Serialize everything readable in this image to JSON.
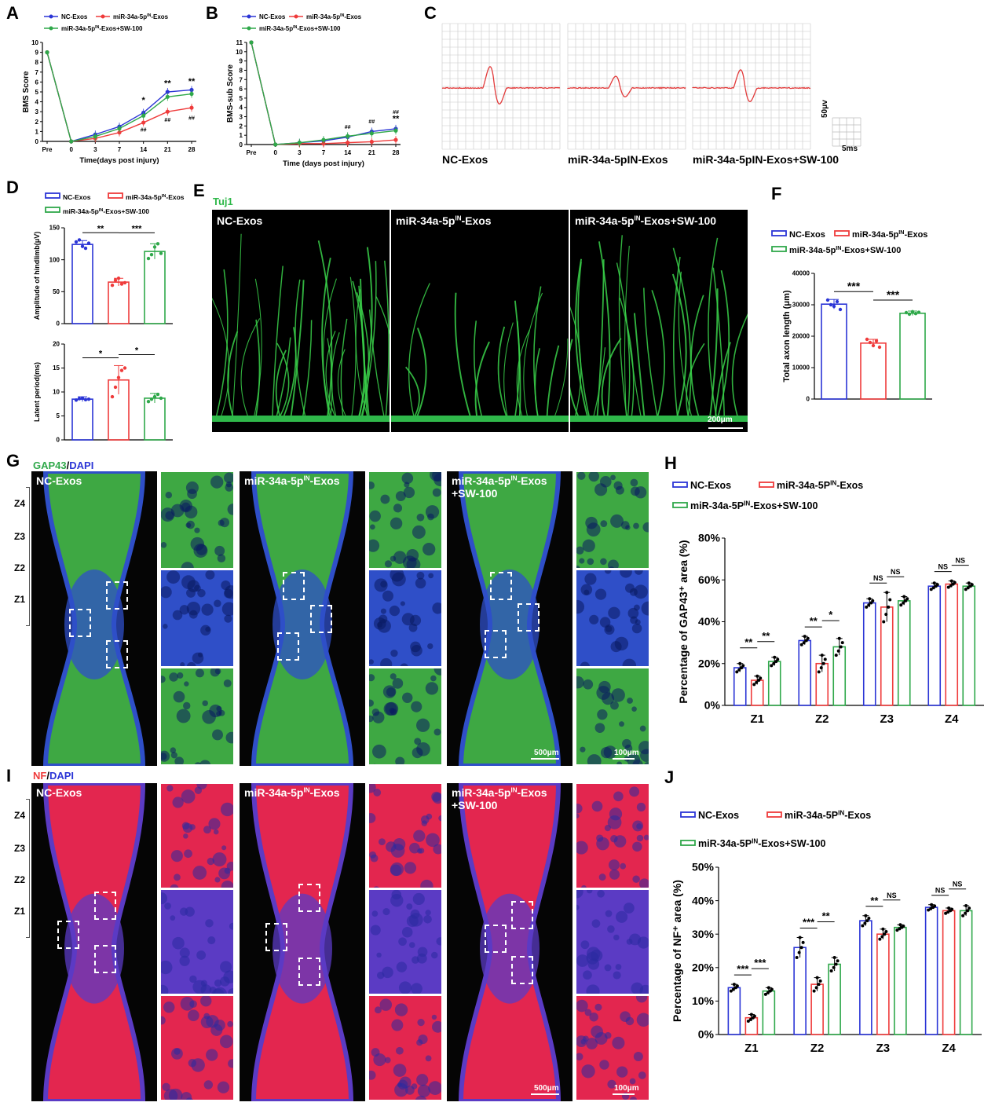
{
  "panels": {
    "A": "A",
    "B": "B",
    "C": "C",
    "D": "D",
    "E": "E",
    "F": "F",
    "G": "G",
    "H": "H",
    "I": "I",
    "J": "J"
  },
  "colors": {
    "nc": "#2b35d6",
    "mir": "#ef3b3b",
    "sw": "#2fa84a",
    "emg": "#e23a3a"
  },
  "groups_exos": {
    "nc": "NC-Exos",
    "mir": "miR-34a-5pIN-Exos",
    "sw": "miR-34a-5pIN-Exos+SW-100"
  },
  "groups_cap": {
    "nc": "NC-Exos",
    "mir": "miR-34a-5PIN-Exos",
    "sw": "miR-34a-5PIN-Exos+SW-100"
  },
  "panel_c": {
    "captions": [
      "NC-Exos",
      "miR-34a-5pIN-Exos",
      "miR-34a-5pIN-Exos+SW-100"
    ],
    "scale_v": "50μv",
    "scale_t": "5ms"
  },
  "panel_e": {
    "stain": "Tuj1",
    "labels": [
      "NC-Exos",
      "miR-34a-5pIN-Exos",
      "miR-34a-5pIN-Exos+SW-100"
    ],
    "scale": "200μm"
  },
  "panel_g": {
    "stain_a": "GAP43",
    "stain_sep": "/",
    "stain_b": "DAPI",
    "labels": [
      "NC-Exos",
      "miR-34a-5pIN-Exos",
      "miR-34a-5pIN-Exos",
      "+SW-100"
    ],
    "zones": [
      "Z4",
      "Z3",
      "Z2",
      "Z1"
    ],
    "scale_main": "500μm",
    "scale_zoom": "100μm"
  },
  "panel_i": {
    "stain_a": "NF",
    "stain_sep": "/",
    "stain_b": "DAPI",
    "labels": [
      "NC-Exos",
      "miR-34a-5pIN-Exos",
      "miR-34a-5pIN-Exos",
      "+SW-100"
    ],
    "zones": [
      "Z4",
      "Z3",
      "Z2",
      "Z1"
    ],
    "scale_main": "500μm",
    "scale_zoom": "100μm"
  },
  "chart_data": [
    {
      "id": "A",
      "type": "line",
      "xlabel": "Time(days post injury)",
      "ylabel": "BMS Score",
      "x": [
        "Pre",
        "0",
        "3",
        "7",
        "14",
        "21",
        "28"
      ],
      "ylim": [
        0,
        10
      ],
      "yticks": [
        0,
        1,
        2,
        3,
        4,
        5,
        6,
        7,
        8,
        9,
        10
      ],
      "series": [
        {
          "name": "NC-Exos",
          "values": [
            9,
            0,
            0.7,
            1.5,
            2.9,
            5.0,
            5.2
          ]
        },
        {
          "name": "miR-34a-5pIN-Exos",
          "values": [
            9,
            0,
            0.3,
            0.9,
            1.9,
            3.0,
            3.4
          ]
        },
        {
          "name": "miR-34a-5pIN-Exos+SW-100",
          "values": [
            9,
            0,
            0.5,
            1.3,
            2.6,
            4.5,
            4.8
          ]
        }
      ],
      "annotations": [
        {
          "x": "14",
          "y": 3.9,
          "text": "*"
        },
        {
          "x": "21",
          "y": 5.6,
          "text": "**"
        },
        {
          "x": "28",
          "y": 5.8,
          "text": "**"
        },
        {
          "x": "14",
          "y": 1.0,
          "text": "##"
        },
        {
          "x": "21",
          "y": 2.0,
          "text": "##"
        },
        {
          "x": "28",
          "y": 2.2,
          "text": "##"
        }
      ]
    },
    {
      "id": "B",
      "type": "line",
      "xlabel": "Time (days post injury)",
      "ylabel": "BMS-sub Score",
      "x": [
        "Pre",
        "0",
        "3",
        "7",
        "14",
        "21",
        "28"
      ],
      "ylim": [
        0,
        11
      ],
      "yticks": [
        0,
        1,
        2,
        3,
        4,
        5,
        6,
        7,
        8,
        9,
        10,
        11
      ],
      "series": [
        {
          "name": "NC-Exos",
          "values": [
            11,
            0,
            0.2,
            0.4,
            0.8,
            1.4,
            1.7
          ]
        },
        {
          "name": "miR-34a-5pIN-Exos",
          "values": [
            11,
            0,
            0.1,
            0.1,
            0.2,
            0.3,
            0.5
          ]
        },
        {
          "name": "miR-34a-5pIN-Exos+SW-100",
          "values": [
            11,
            0,
            0.2,
            0.5,
            0.9,
            1.2,
            1.5
          ]
        }
      ],
      "annotations": [
        {
          "x": "14",
          "y": 1.7,
          "text": "##"
        },
        {
          "x": "21",
          "y": 2.3,
          "text": "##"
        },
        {
          "x": "28",
          "y": 3.3,
          "text": "##"
        },
        {
          "x": "28",
          "y": 2.5,
          "text": "**"
        }
      ]
    },
    {
      "id": "D1",
      "type": "bar",
      "ylabel": "Amplitude of hindlimb(μV)",
      "categories": [
        "NC-Exos",
        "miR-34a-5pIN-Exos",
        "miR-34a-5pIN-Exos+SW-100"
      ],
      "values": [
        124,
        65,
        113
      ],
      "errors": [
        6,
        6,
        12
      ],
      "ylim": [
        0,
        150
      ],
      "yticks": [
        0,
        50,
        100,
        150
      ],
      "points": [
        [
          128,
          131,
          121,
          118,
          126
        ],
        [
          60,
          68,
          71,
          62,
          64
        ],
        [
          102,
          108,
          120,
          125,
          110
        ]
      ],
      "sig": [
        {
          "from": 0,
          "to": 1,
          "text": "**"
        },
        {
          "from": 1,
          "to": 2,
          "text": "***"
        }
      ]
    },
    {
      "id": "D2",
      "type": "bar",
      "ylabel": "Latent period(ms)",
      "categories": [
        "NC-Exos",
        "miR-34a-5pIN-Exos",
        "miR-34a-5pIN-Exos+SW-100"
      ],
      "values": [
        8.5,
        12.5,
        8.7
      ],
      "errors": [
        0.5,
        3,
        1
      ],
      "ylim": [
        0,
        20
      ],
      "yticks": [
        0,
        5,
        10,
        15,
        20
      ],
      "points": [
        [
          8.3,
          8.6,
          8.7,
          8.4,
          8.5
        ],
        [
          9,
          11,
          13,
          14.5,
          15
        ],
        [
          8,
          8.5,
          9,
          9.5,
          8.7
        ]
      ],
      "sig": [
        {
          "from": 0,
          "to": 1,
          "text": "*"
        },
        {
          "from": 1,
          "to": 2,
          "text": "*"
        }
      ]
    },
    {
      "id": "F",
      "type": "bar",
      "ylabel": "Total axon length (μm)",
      "categories": [
        "NC-Exos",
        "miR-34a-5pIN-Exos",
        "miR-34a-5pIN-Exos+SW-100"
      ],
      "values": [
        30200,
        17800,
        27300
      ],
      "errors": [
        1500,
        1200,
        700
      ],
      "ylim": [
        0,
        40000
      ],
      "yticks": [
        0,
        10000,
        20000,
        30000,
        40000
      ],
      "points": [
        [
          31500,
          30000,
          29500,
          31000,
          28500
        ],
        [
          19000,
          18000,
          17000,
          18500,
          16500
        ],
        [
          27500,
          27000,
          27800,
          27200,
          27600
        ]
      ],
      "sig": [
        {
          "from": 0,
          "to": 1,
          "text": "***"
        },
        {
          "from": 1,
          "to": 2,
          "text": "***"
        }
      ]
    },
    {
      "id": "H",
      "type": "bar",
      "ylabel": "Percentage of GAP43⁺ area (%)",
      "categories": [
        "Z1",
        "Z2",
        "Z3",
        "Z4"
      ],
      "ylim": [
        0,
        80
      ],
      "yticks": [
        0,
        20,
        40,
        60,
        80
      ],
      "ytick_suffix": "%",
      "series": [
        {
          "name": "NC-Exos",
          "values": [
            18,
            31,
            49,
            57
          ],
          "errors": [
            2,
            2,
            2,
            1.5
          ]
        },
        {
          "name": "miR-34a-5PIN-Exos",
          "values": [
            12,
            20,
            47,
            58
          ],
          "errors": [
            2,
            4,
            7,
            1.5
          ]
        },
        {
          "name": "miR-34a-5PIN-Exos+SW-100",
          "values": [
            21,
            28,
            50,
            57
          ],
          "errors": [
            2,
            4,
            2,
            1.5
          ]
        }
      ],
      "sig": [
        {
          "group": 0,
          "from": 0,
          "to": 1,
          "text": "**"
        },
        {
          "group": 0,
          "from": 1,
          "to": 2,
          "text": "**"
        },
        {
          "group": 1,
          "from": 0,
          "to": 1,
          "text": "**"
        },
        {
          "group": 1,
          "from": 1,
          "to": 2,
          "text": "*"
        },
        {
          "group": 2,
          "from": 0,
          "to": 1,
          "text": "NS"
        },
        {
          "group": 2,
          "from": 1,
          "to": 2,
          "text": "NS"
        },
        {
          "group": 3,
          "from": 0,
          "to": 1,
          "text": "NS"
        },
        {
          "group": 3,
          "from": 1,
          "to": 2,
          "text": "NS"
        }
      ]
    },
    {
      "id": "J",
      "type": "bar",
      "ylabel": "Percentage of NF⁺ area (%)",
      "categories": [
        "Z1",
        "Z2",
        "Z3",
        "Z4"
      ],
      "ylim": [
        0,
        50
      ],
      "yticks": [
        0,
        10,
        20,
        30,
        40,
        50
      ],
      "ytick_suffix": "%",
      "series": [
        {
          "name": "NC-Exos",
          "values": [
            14,
            26,
            34,
            38
          ],
          "errors": [
            1,
            3,
            1.5,
            0.8
          ]
        },
        {
          "name": "miR-34a-5PIN-Exos",
          "values": [
            5,
            15,
            30,
            37
          ],
          "errors": [
            1,
            2,
            1.5,
            0.8
          ]
        },
        {
          "name": "miR-34a-5PIN-Exos+SW-100",
          "values": [
            13,
            21,
            32,
            37
          ],
          "errors": [
            1,
            2,
            0.8,
            1.5
          ]
        }
      ],
      "sig": [
        {
          "group": 0,
          "from": 0,
          "to": 1,
          "text": "***"
        },
        {
          "group": 0,
          "from": 1,
          "to": 2,
          "text": "***"
        },
        {
          "group": 1,
          "from": 0,
          "to": 1,
          "text": "***"
        },
        {
          "group": 1,
          "from": 1,
          "to": 2,
          "text": "**"
        },
        {
          "group": 2,
          "from": 0,
          "to": 1,
          "text": "**"
        },
        {
          "group": 2,
          "from": 1,
          "to": 2,
          "text": "NS"
        },
        {
          "group": 3,
          "from": 0,
          "to": 1,
          "text": "NS"
        },
        {
          "group": 3,
          "from": 1,
          "to": 2,
          "text": "NS"
        }
      ]
    }
  ]
}
